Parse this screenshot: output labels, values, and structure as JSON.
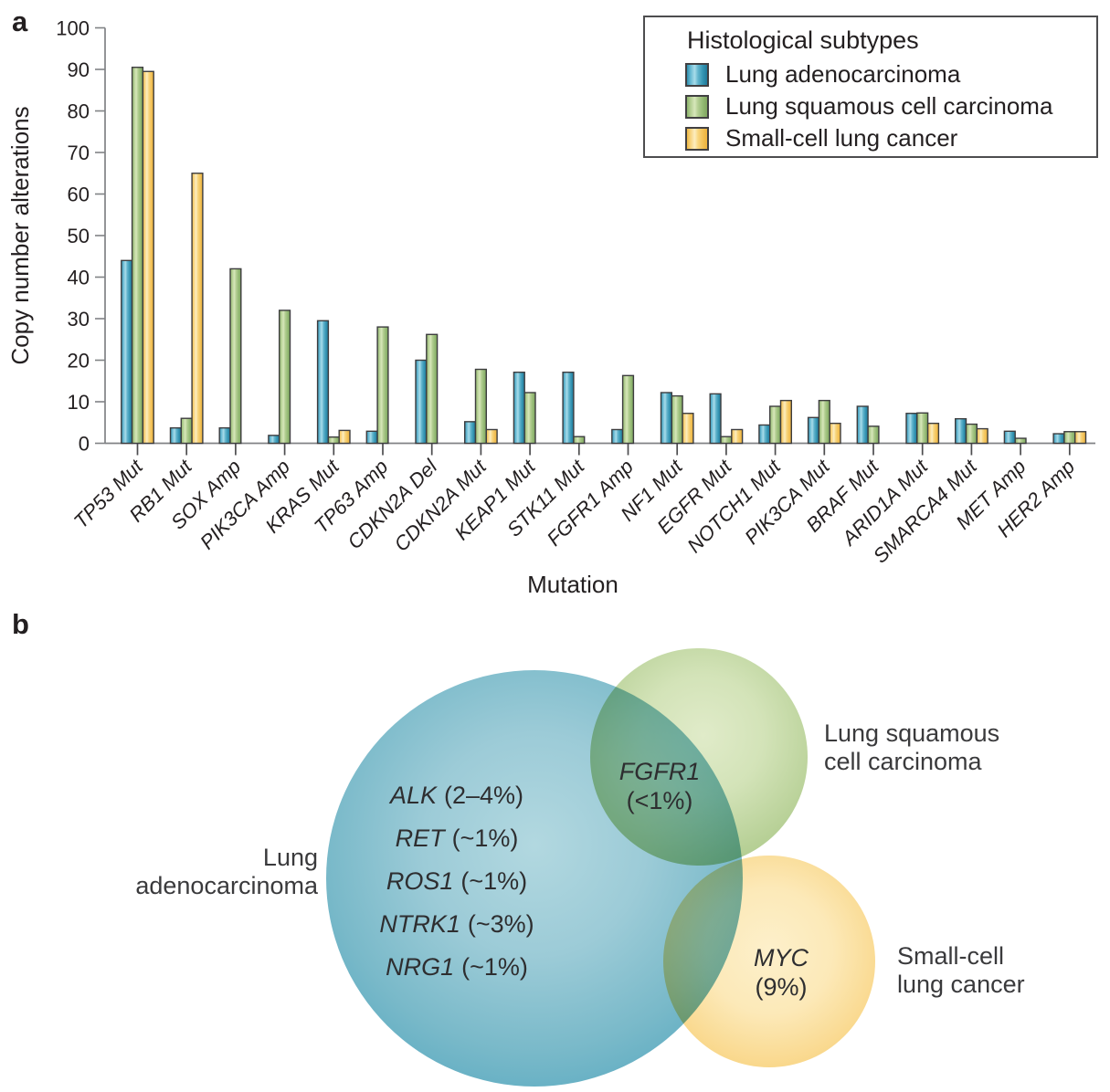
{
  "figure": {
    "panel_a_label": "a",
    "panel_b_label": "b"
  },
  "chart_data": {
    "type": "bar",
    "title": "",
    "xlabel": "Mutation",
    "ylabel": "Copy number alterations",
    "ylim": [
      0,
      100
    ],
    "ytick_step": 10,
    "grid": false,
    "legend_title": "Histological subtypes",
    "legend_position": "upper right",
    "categories": [
      "TP53 Mut",
      "RB1 Mut",
      "SOX Amp",
      "PIK3CA Amp",
      "KRAS Mut",
      "TP63 Amp",
      "CDKN2A Del",
      "CDKN2A Mut",
      "KEAP1 Mut",
      "STK11 Mut",
      "FGFR1 Amp",
      "NF1 Mut",
      "EGFR Mut",
      "NOTCH1 Mut",
      "PIK3CA Mut",
      "BRAF Mut",
      "ARID1A Mut",
      "SMARCA4 Mut",
      "MET Amp",
      "HER2 Amp"
    ],
    "series": [
      {
        "name": "Lung adenocarcinoma",
        "color": "#3d9cba",
        "values": [
          44,
          3.7,
          3.7,
          1.9,
          29.5,
          2.9,
          20,
          5.2,
          17.1,
          17.1,
          3.3,
          12.2,
          11.9,
          4.4,
          6.2,
          8.9,
          7.2,
          5.9,
          2.9,
          2.3
        ]
      },
      {
        "name": "Lung squamous cell carcinoma",
        "color": "#9cc27e",
        "values": [
          90.5,
          6,
          42,
          32,
          1.5,
          28,
          26.2,
          17.8,
          12.2,
          1.6,
          16.3,
          11.4,
          1.6,
          8.9,
          10.3,
          4.1,
          7.3,
          4.6,
          1.2,
          2.8
        ]
      },
      {
        "name": "Small-cell lung cancer",
        "color": "#f7c95f",
        "values": [
          89.5,
          65,
          null,
          null,
          3.1,
          null,
          null,
          3.3,
          null,
          null,
          null,
          7.2,
          3.3,
          10.3,
          4.8,
          null,
          4.8,
          3.5,
          null,
          2.8
        ]
      }
    ]
  },
  "venn": {
    "labels": {
      "luad": [
        "Lung",
        "adenocarcinoma"
      ],
      "lusc": [
        "Lung squamous",
        "cell carcinoma"
      ],
      "sclc": [
        "Small-cell",
        "lung cancer"
      ]
    },
    "luad_genes": [
      {
        "gene": "ALK",
        "freq": "(2–4%)"
      },
      {
        "gene": "RET",
        "freq": "(~1%)"
      },
      {
        "gene": "ROS1",
        "freq": "(~1%)"
      },
      {
        "gene": "NTRK1",
        "freq": "(~3%)"
      },
      {
        "gene": "NRG1",
        "freq": "(~1%)"
      }
    ],
    "overlap_luad_lusc": {
      "gene": "FGFR1",
      "freq": "(<1%)"
    },
    "sclc_only": {
      "gene": "MYC",
      "freq": "(9%)"
    },
    "colors": {
      "luad": "#6fb6c9",
      "lusc": "#b1cd90",
      "sclc": "#f8d486"
    }
  }
}
